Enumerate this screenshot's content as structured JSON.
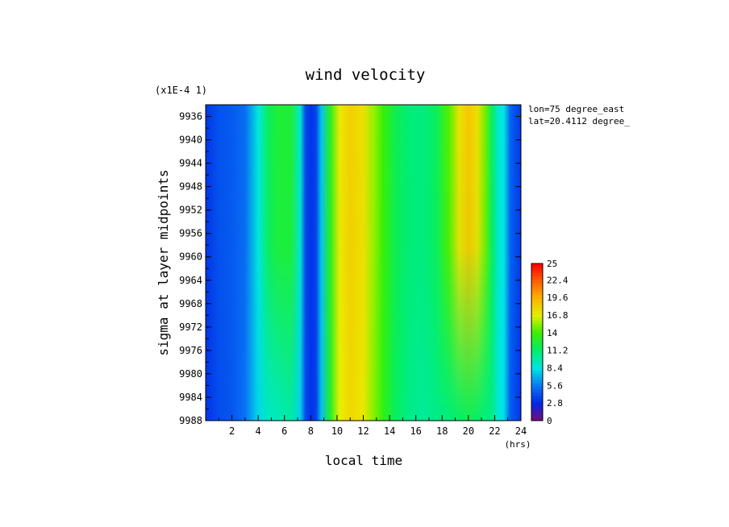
{
  "chart_data": {
    "type": "heatmap",
    "title": "wind velocity",
    "scale_note": "(x1E-4 1)",
    "xlabel": "local time",
    "xunit": "(hrs)",
    "ylabel": "sigma at layer midpoints",
    "annotations": [
      "lon=75 degree_east",
      "lat=20.4112 degree_"
    ],
    "xlim": [
      0,
      24
    ],
    "ylim": [
      9934,
      9988
    ],
    "x_ticks": [
      "2",
      "4",
      "6",
      "8",
      "10",
      "12",
      "14",
      "16",
      "18",
      "20",
      "22",
      "24"
    ],
    "y_ticks": [
      "9936",
      "9940",
      "9944",
      "9948",
      "9952",
      "9956",
      "9960",
      "9964",
      "9968",
      "9972",
      "9976",
      "9980",
      "9984",
      "9988"
    ],
    "colorbar": {
      "range": [
        0,
        25
      ],
      "tick_labels": [
        "0",
        "2.8",
        "5.6",
        "8.4",
        "11.2",
        "14",
        "16.8",
        "19.6",
        "22.4",
        "25"
      ]
    },
    "time_profile": {
      "x": [
        0,
        1,
        2,
        3,
        4,
        4.8,
        5.5,
        6.5,
        7.2,
        7.6,
        8.0,
        8.4,
        8.8,
        9.5,
        10.2,
        11,
        12,
        12.8,
        13.5,
        14.5,
        15.5,
        16.5,
        17.5,
        18.5,
        19.3,
        20,
        20.7,
        21.3,
        21.8,
        22.3,
        22.7,
        23.2,
        24
      ],
      "top_values": [
        3.3,
        4.3,
        4.6,
        5.2,
        8.6,
        11.7,
        12.6,
        12.6,
        9.0,
        4.0,
        3.2,
        3.8,
        7.5,
        13.3,
        17.1,
        18.2,
        17.5,
        15.5,
        13.8,
        11.8,
        11.0,
        10.8,
        11.6,
        14.3,
        17.4,
        18.6,
        17.5,
        14.8,
        11.6,
        8.8,
        8.5,
        4.8,
        3.4
      ],
      "bottom_values": [
        3.2,
        4.1,
        4.4,
        5.4,
        8.0,
        9.2,
        9.4,
        9.9,
        7.8,
        4.0,
        3.2,
        3.6,
        7.4,
        13.0,
        16.8,
        17.9,
        17.2,
        15.2,
        13.5,
        11.5,
        10.6,
        10.2,
        10.6,
        10.9,
        11.4,
        11.8,
        11.4,
        10.8,
        10.6,
        8.6,
        8.2,
        4.6,
        3.3
      ]
    },
    "colors": {
      "0": "#7a0a7a",
      "2.8": "#0028e6",
      "5.6": "#0a78f5",
      "8.4": "#00e6e6",
      "11.2": "#00ee6e",
      "14": "#3cf000",
      "16.8": "#e6f000",
      "19.6": "#ffb000",
      "22.4": "#ff5a00",
      "25": "#ff0000"
    },
    "grid": false,
    "legend": "right colorbar"
  }
}
